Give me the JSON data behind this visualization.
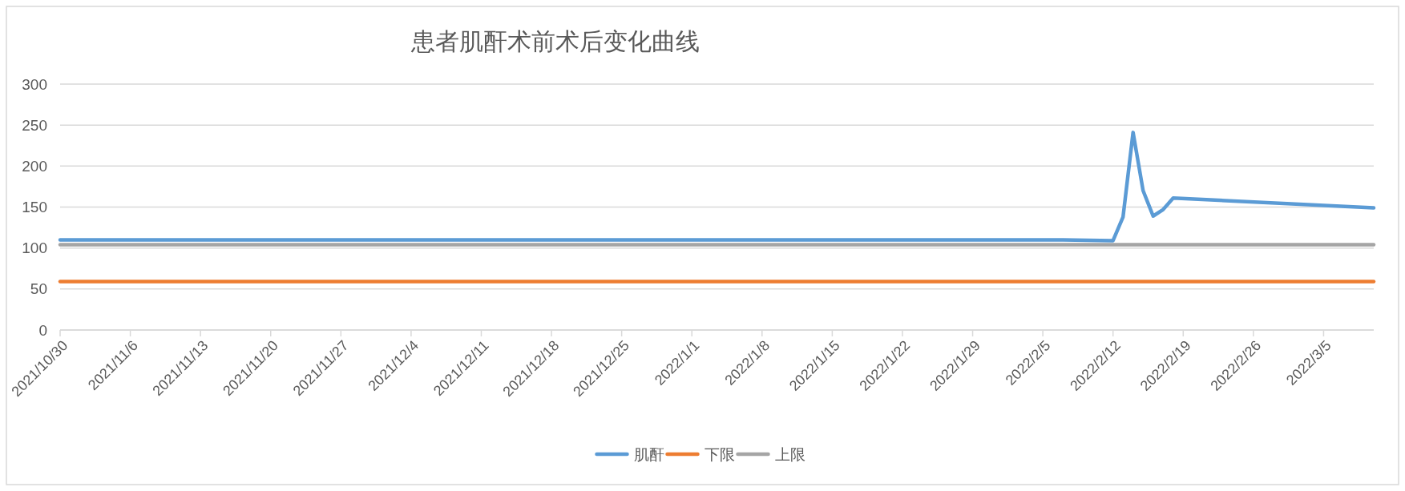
{
  "chart_data": {
    "type": "line",
    "title": "患者肌酐术前术后变化曲线",
    "series": [
      {
        "name": "肌酐",
        "color": "#5b9bd5",
        "x": [
          "2021-10-30",
          "2022-02-07",
          "2022-02-12",
          "2022-02-13",
          "2022-02-14",
          "2022-02-15",
          "2022-02-16",
          "2022-02-17",
          "2022-02-18",
          "2022-03-10"
        ],
        "values": [
          110,
          110,
          109,
          138,
          241,
          170,
          139,
          147,
          161,
          149
        ]
      },
      {
        "name": "下限",
        "color": "#ed7d31",
        "x": [
          "2021-10-30",
          "2022-03-10"
        ],
        "values": [
          59,
          59
        ]
      },
      {
        "name": "上限",
        "color": "#a5a5a5",
        "x": [
          "2021-10-30",
          "2022-03-10"
        ],
        "values": [
          104,
          104
        ]
      }
    ],
    "xlim": [
      "2021-10-30",
      "2022-03-10"
    ],
    "xticks": [
      {
        "value": "2021-10-30",
        "label": "2021/10/30"
      },
      {
        "value": "2021-11-06",
        "label": "2021/11/6"
      },
      {
        "value": "2021-11-13",
        "label": "2021/11/13"
      },
      {
        "value": "2021-11-20",
        "label": "2021/11/20"
      },
      {
        "value": "2021-11-27",
        "label": "2021/11/27"
      },
      {
        "value": "2021-12-04",
        "label": "2021/12/4"
      },
      {
        "value": "2021-12-11",
        "label": "2021/12/11"
      },
      {
        "value": "2021-12-18",
        "label": "2021/12/18"
      },
      {
        "value": "2021-12-25",
        "label": "2021/12/25"
      },
      {
        "value": "2022-01-01",
        "label": "2022/1/1"
      },
      {
        "value": "2022-01-08",
        "label": "2022/1/8"
      },
      {
        "value": "2022-01-15",
        "label": "2022/1/15"
      },
      {
        "value": "2022-01-22",
        "label": "2022/1/22"
      },
      {
        "value": "2022-01-29",
        "label": "2022/1/29"
      },
      {
        "value": "2022-02-05",
        "label": "2022/2/5"
      },
      {
        "value": "2022-02-12",
        "label": "2022/2/12"
      },
      {
        "value": "2022-02-19",
        "label": "2022/2/19"
      },
      {
        "value": "2022-02-26",
        "label": "2022/2/26"
      },
      {
        "value": "2022-03-05",
        "label": "2022/3/5"
      }
    ],
    "ylim": [
      0,
      300
    ],
    "yticks": [
      0,
      50,
      100,
      150,
      200,
      250,
      300
    ],
    "grid": "y",
    "legend": "bottom",
    "marker": "none",
    "line_style": "solid"
  }
}
